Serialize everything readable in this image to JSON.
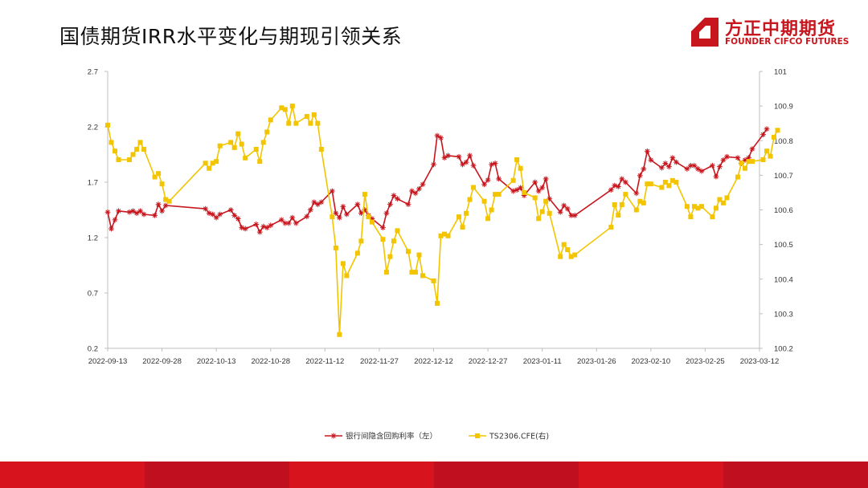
{
  "slide": {
    "title": "国债期货IRR水平变化与期现引领关系"
  },
  "logo": {
    "name_cn": "方正中期期货",
    "name_en": "FOUNDER CIFCO FUTURES",
    "brand_color": "#c8161e"
  },
  "footer_colors": [
    "#d7141d",
    "#c01020",
    "#d7141d",
    "#c01020",
    "#d7141d",
    "#c01020"
  ],
  "chart_data": {
    "type": "line",
    "title": "",
    "x_ticks": [
      "2022-09-13",
      "2022-09-28",
      "2022-10-13",
      "2022-10-28",
      "2022-11-12",
      "2022-11-27",
      "2022-12-12",
      "2022-12-27",
      "2023-01-11",
      "2023-01-26",
      "2023-02-10",
      "2023-02-25",
      "2023-03-12"
    ],
    "x_range": [
      "2022-09-13",
      "2023-03-12"
    ],
    "y_left": {
      "min": 0.2,
      "max": 2.7,
      "ticks": [
        "0.2",
        "0.7",
        "1.2",
        "1.7",
        "2.2",
        "2.7"
      ]
    },
    "y_right": {
      "min": 100.2,
      "max": 101.0,
      "ticks": [
        "100.2",
        "100.3",
        "100.4",
        "100.5",
        "100.6",
        "100.7",
        "100.8",
        "100.9",
        "101"
      ]
    },
    "grid": false,
    "legend_position": "bottom",
    "series": [
      {
        "name": "银行间隐含回购利率（左）",
        "axis": "left",
        "color": "#c8161e",
        "marker": "star",
        "points": [
          [
            "2022-09-13",
            1.43
          ],
          [
            "2022-09-14",
            1.28
          ],
          [
            "2022-09-15",
            1.36
          ],
          [
            "2022-09-16",
            1.44
          ],
          [
            "2022-09-19",
            1.43
          ],
          [
            "2022-09-20",
            1.44
          ],
          [
            "2022-09-21",
            1.42
          ],
          [
            "2022-09-22",
            1.44
          ],
          [
            "2022-09-23",
            1.41
          ],
          [
            "2022-09-26",
            1.4
          ],
          [
            "2022-09-27",
            1.5
          ],
          [
            "2022-09-28",
            1.44
          ],
          [
            "2022-09-29",
            1.49
          ],
          [
            "2022-10-10",
            1.46
          ],
          [
            "2022-10-11",
            1.42
          ],
          [
            "2022-10-12",
            1.41
          ],
          [
            "2022-10-13",
            1.38
          ],
          [
            "2022-10-14",
            1.41
          ],
          [
            "2022-10-17",
            1.45
          ],
          [
            "2022-10-18",
            1.4
          ],
          [
            "2022-10-19",
            1.37
          ],
          [
            "2022-10-20",
            1.29
          ],
          [
            "2022-10-21",
            1.28
          ],
          [
            "2022-10-24",
            1.32
          ],
          [
            "2022-10-25",
            1.25
          ],
          [
            "2022-10-26",
            1.3
          ],
          [
            "2022-10-27",
            1.29
          ],
          [
            "2022-10-28",
            1.31
          ],
          [
            "2022-10-31",
            1.36
          ],
          [
            "2022-11-01",
            1.33
          ],
          [
            "2022-11-02",
            1.33
          ],
          [
            "2022-11-03",
            1.38
          ],
          [
            "2022-11-04",
            1.33
          ],
          [
            "2022-11-07",
            1.39
          ],
          [
            "2022-11-08",
            1.45
          ],
          [
            "2022-11-09",
            1.52
          ],
          [
            "2022-11-10",
            1.5
          ],
          [
            "2022-11-11",
            1.52
          ],
          [
            "2022-11-14",
            1.62
          ],
          [
            "2022-11-15",
            1.42
          ],
          [
            "2022-11-16",
            1.38
          ],
          [
            "2022-11-17",
            1.48
          ],
          [
            "2022-11-18",
            1.41
          ],
          [
            "2022-11-21",
            1.5
          ],
          [
            "2022-11-22",
            1.42
          ],
          [
            "2022-11-23",
            1.45
          ],
          [
            "2022-11-24",
            1.4
          ],
          [
            "2022-11-25",
            1.37
          ],
          [
            "2022-11-28",
            1.29
          ],
          [
            "2022-11-29",
            1.42
          ],
          [
            "2022-11-30",
            1.5
          ],
          [
            "2022-12-01",
            1.58
          ],
          [
            "2022-12-02",
            1.55
          ],
          [
            "2022-12-05",
            1.5
          ],
          [
            "2022-12-06",
            1.62
          ],
          [
            "2022-12-07",
            1.6
          ],
          [
            "2022-12-08",
            1.64
          ],
          [
            "2022-12-09",
            1.68
          ],
          [
            "2022-12-12",
            1.86
          ],
          [
            "2022-12-13",
            2.12
          ],
          [
            "2022-12-14",
            2.1
          ],
          [
            "2022-12-15",
            1.92
          ],
          [
            "2022-12-16",
            1.94
          ],
          [
            "2022-12-19",
            1.93
          ],
          [
            "2022-12-20",
            1.86
          ],
          [
            "2022-12-21",
            1.88
          ],
          [
            "2022-12-22",
            1.94
          ],
          [
            "2022-12-23",
            1.85
          ],
          [
            "2022-12-26",
            1.68
          ],
          [
            "2022-12-27",
            1.72
          ],
          [
            "2022-12-28",
            1.86
          ],
          [
            "2022-12-29",
            1.87
          ],
          [
            "2022-12-30",
            1.73
          ],
          [
            "2023-01-03",
            1.62
          ],
          [
            "2023-01-04",
            1.63
          ],
          [
            "2023-01-05",
            1.65
          ],
          [
            "2023-01-06",
            1.58
          ],
          [
            "2023-01-09",
            1.7
          ],
          [
            "2023-01-10",
            1.62
          ],
          [
            "2023-01-11",
            1.65
          ],
          [
            "2023-01-12",
            1.73
          ],
          [
            "2023-01-13",
            1.55
          ],
          [
            "2023-01-16",
            1.43
          ],
          [
            "2023-01-17",
            1.49
          ],
          [
            "2023-01-18",
            1.46
          ],
          [
            "2023-01-19",
            1.4
          ],
          [
            "2023-01-20",
            1.4
          ],
          [
            "2023-01-30",
            1.63
          ],
          [
            "2023-01-31",
            1.67
          ],
          [
            "2023-02-01",
            1.66
          ],
          [
            "2023-02-02",
            1.73
          ],
          [
            "2023-02-03",
            1.7
          ],
          [
            "2023-02-06",
            1.6
          ],
          [
            "2023-02-07",
            1.76
          ],
          [
            "2023-02-08",
            1.82
          ],
          [
            "2023-02-09",
            1.98
          ],
          [
            "2023-02-10",
            1.9
          ],
          [
            "2023-02-13",
            1.83
          ],
          [
            "2023-02-14",
            1.87
          ],
          [
            "2023-02-15",
            1.84
          ],
          [
            "2023-02-16",
            1.92
          ],
          [
            "2023-02-17",
            1.88
          ],
          [
            "2023-02-20",
            1.82
          ],
          [
            "2023-02-21",
            1.85
          ],
          [
            "2023-02-22",
            1.85
          ],
          [
            "2023-02-23",
            1.82
          ],
          [
            "2023-02-24",
            1.8
          ],
          [
            "2023-02-27",
            1.85
          ],
          [
            "2023-02-28",
            1.75
          ],
          [
            "2023-03-01",
            1.84
          ],
          [
            "2023-03-02",
            1.9
          ],
          [
            "2023-03-03",
            1.93
          ],
          [
            "2023-03-06",
            1.92
          ],
          [
            "2023-03-07",
            1.87
          ],
          [
            "2023-03-08",
            1.9
          ],
          [
            "2023-03-09",
            1.92
          ],
          [
            "2023-03-10",
            2.0
          ],
          [
            "2023-03-13",
            2.13
          ],
          [
            "2023-03-14",
            2.18
          ]
        ]
      },
      {
        "name": "TS2306.CFE(右)",
        "axis": "right",
        "color": "#f2c500",
        "marker": "square",
        "points": [
          [
            "2022-09-13",
            100.845
          ],
          [
            "2022-09-14",
            100.795
          ],
          [
            "2022-09-15",
            100.77
          ],
          [
            "2022-09-16",
            100.745
          ],
          [
            "2022-09-19",
            100.745
          ],
          [
            "2022-09-20",
            100.76
          ],
          [
            "2022-09-21",
            100.775
          ],
          [
            "2022-09-22",
            100.795
          ],
          [
            "2022-09-23",
            100.775
          ],
          [
            "2022-09-26",
            100.695
          ],
          [
            "2022-09-27",
            100.705
          ],
          [
            "2022-09-28",
            100.675
          ],
          [
            "2022-09-29",
            100.63
          ],
          [
            "2022-09-30",
            100.625
          ],
          [
            "2022-10-10",
            100.735
          ],
          [
            "2022-10-11",
            100.72
          ],
          [
            "2022-10-12",
            100.735
          ],
          [
            "2022-10-13",
            100.74
          ],
          [
            "2022-10-14",
            100.785
          ],
          [
            "2022-10-17",
            100.795
          ],
          [
            "2022-10-18",
            100.78
          ],
          [
            "2022-10-19",
            100.82
          ],
          [
            "2022-10-20",
            100.79
          ],
          [
            "2022-10-21",
            100.75
          ],
          [
            "2022-10-24",
            100.775
          ],
          [
            "2022-10-25",
            100.74
          ],
          [
            "2022-10-26",
            100.795
          ],
          [
            "2022-10-27",
            100.825
          ],
          [
            "2022-10-28",
            100.86
          ],
          [
            "2022-10-31",
            100.895
          ],
          [
            "2022-11-01",
            100.89
          ],
          [
            "2022-11-02",
            100.85
          ],
          [
            "2022-11-03",
            100.9
          ],
          [
            "2022-11-04",
            100.85
          ],
          [
            "2022-11-07",
            100.87
          ],
          [
            "2022-11-08",
            100.85
          ],
          [
            "2022-11-09",
            100.875
          ],
          [
            "2022-11-10",
            100.85
          ],
          [
            "2022-11-11",
            100.775
          ],
          [
            "2022-11-14",
            100.58
          ],
          [
            "2022-11-15",
            100.49
          ],
          [
            "2022-11-16",
            100.24
          ],
          [
            "2022-11-17",
            100.445
          ],
          [
            "2022-11-18",
            100.41
          ],
          [
            "2022-11-21",
            100.475
          ],
          [
            "2022-11-22",
            100.51
          ],
          [
            "2022-11-23",
            100.645
          ],
          [
            "2022-11-24",
            100.58
          ],
          [
            "2022-11-25",
            100.565
          ],
          [
            "2022-11-28",
            100.515
          ],
          [
            "2022-11-29",
            100.42
          ],
          [
            "2022-11-30",
            100.465
          ],
          [
            "2022-12-01",
            100.51
          ],
          [
            "2022-12-02",
            100.54
          ],
          [
            "2022-12-05",
            100.48
          ],
          [
            "2022-12-06",
            100.42
          ],
          [
            "2022-12-07",
            100.42
          ],
          [
            "2022-12-08",
            100.47
          ],
          [
            "2022-12-09",
            100.41
          ],
          [
            "2022-12-12",
            100.395
          ],
          [
            "2022-12-13",
            100.33
          ],
          [
            "2022-12-14",
            100.525
          ],
          [
            "2022-12-15",
            100.53
          ],
          [
            "2022-12-16",
            100.525
          ],
          [
            "2022-12-19",
            100.58
          ],
          [
            "2022-12-20",
            100.55
          ],
          [
            "2022-12-21",
            100.59
          ],
          [
            "2022-12-22",
            100.63
          ],
          [
            "2022-12-23",
            100.665
          ],
          [
            "2022-12-26",
            100.625
          ],
          [
            "2022-12-27",
            100.575
          ],
          [
            "2022-12-28",
            100.6
          ],
          [
            "2022-12-29",
            100.645
          ],
          [
            "2022-12-30",
            100.645
          ],
          [
            "2023-01-03",
            100.685
          ],
          [
            "2023-01-04",
            100.745
          ],
          [
            "2023-01-05",
            100.72
          ],
          [
            "2023-01-06",
            100.65
          ],
          [
            "2023-01-09",
            100.635
          ],
          [
            "2023-01-10",
            100.575
          ],
          [
            "2023-01-11",
            100.595
          ],
          [
            "2023-01-12",
            100.625
          ],
          [
            "2023-01-13",
            100.59
          ],
          [
            "2023-01-16",
            100.465
          ],
          [
            "2023-01-17",
            100.5
          ],
          [
            "2023-01-18",
            100.485
          ],
          [
            "2023-01-19",
            100.465
          ],
          [
            "2023-01-20",
            100.47
          ],
          [
            "2023-01-30",
            100.55
          ],
          [
            "2023-01-31",
            100.615
          ],
          [
            "2023-02-01",
            100.585
          ],
          [
            "2023-02-02",
            100.615
          ],
          [
            "2023-02-03",
            100.645
          ],
          [
            "2023-02-06",
            100.6
          ],
          [
            "2023-02-07",
            100.625
          ],
          [
            "2023-02-08",
            100.62
          ],
          [
            "2023-02-09",
            100.675
          ],
          [
            "2023-02-10",
            100.675
          ],
          [
            "2023-02-13",
            100.665
          ],
          [
            "2023-02-14",
            100.68
          ],
          [
            "2023-02-15",
            100.67
          ],
          [
            "2023-02-16",
            100.685
          ],
          [
            "2023-02-17",
            100.68
          ],
          [
            "2023-02-20",
            100.61
          ],
          [
            "2023-02-21",
            100.58
          ],
          [
            "2023-02-22",
            100.61
          ],
          [
            "2023-02-23",
            100.605
          ],
          [
            "2023-02-24",
            100.61
          ],
          [
            "2023-02-27",
            100.58
          ],
          [
            "2023-02-28",
            100.605
          ],
          [
            "2023-03-01",
            100.63
          ],
          [
            "2023-03-02",
            100.62
          ],
          [
            "2023-03-03",
            100.635
          ],
          [
            "2023-03-06",
            100.695
          ],
          [
            "2023-03-07",
            100.735
          ],
          [
            "2023-03-08",
            100.72
          ],
          [
            "2023-03-09",
            100.74
          ],
          [
            "2023-03-10",
            100.74
          ],
          [
            "2023-03-13",
            100.745
          ],
          [
            "2023-03-14",
            100.77
          ],
          [
            "2023-03-15",
            100.755
          ],
          [
            "2023-03-16",
            100.81
          ],
          [
            "2023-03-17",
            100.83
          ]
        ]
      }
    ]
  }
}
